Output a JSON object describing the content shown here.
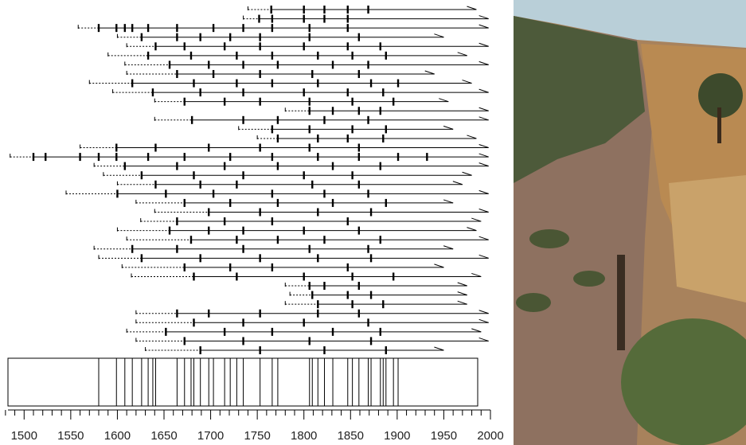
{
  "chart_data": {
    "type": "fire-history",
    "xlim": [
      1475,
      2000
    ],
    "xticks": [
      1500,
      1550,
      1600,
      1650,
      1700,
      1750,
      1800,
      1850,
      1900,
      1950,
      2000
    ],
    "xminorticks": [
      1480,
      1490,
      1510,
      1520,
      1530,
      1540,
      1560,
      1570,
      1580,
      1590,
      1610,
      1620,
      1630,
      1640,
      1660,
      1670,
      1680,
      1690,
      1710,
      1720,
      1730,
      1740,
      1760,
      1770,
      1780,
      1790,
      1810,
      1820,
      1830,
      1840,
      1860,
      1870,
      1880,
      1890,
      1910,
      1920,
      1930,
      1940,
      1960,
      1970,
      1980,
      1990
    ],
    "color": "#000000",
    "records": [
      {
        "start": 1740,
        "end": 1985,
        "scars": [
          1765,
          1800,
          1822,
          1847,
          1869
        ]
      },
      {
        "start": 1735,
        "end": 1998,
        "scars": [
          1752,
          1766,
          1800,
          1822,
          1847
        ]
      },
      {
        "start": 1558,
        "end": 1998,
        "scars": [
          1580,
          1599,
          1608,
          1616,
          1633,
          1664,
          1703,
          1735,
          1766,
          1806,
          1847
        ]
      },
      {
        "start": 1600,
        "end": 1950,
        "scars": [
          1626,
          1664,
          1689,
          1721,
          1753,
          1806,
          1859
        ]
      },
      {
        "start": 1610,
        "end": 1998,
        "scars": [
          1641,
          1672,
          1715,
          1753,
          1800,
          1847,
          1882
        ]
      },
      {
        "start": 1590,
        "end": 1975,
        "scars": [
          1633,
          1679,
          1728,
          1766,
          1815,
          1852,
          1888
        ]
      },
      {
        "start": 1608,
        "end": 1998,
        "scars": [
          1656,
          1698,
          1735,
          1772,
          1831,
          1869
        ]
      },
      {
        "start": 1610,
        "end": 1940,
        "scars": [
          1664,
          1703,
          1753,
          1809,
          1859
        ]
      },
      {
        "start": 1570,
        "end": 1980,
        "scars": [
          1616,
          1682,
          1728,
          1766,
          1815,
          1872,
          1901
        ]
      },
      {
        "start": 1595,
        "end": 1998,
        "scars": [
          1638,
          1689,
          1735,
          1800,
          1847,
          1885
        ]
      },
      {
        "start": 1640,
        "end": 1955,
        "scars": [
          1672,
          1715,
          1753,
          1806,
          1852,
          1896
        ]
      },
      {
        "start": 1780,
        "end": 1998,
        "scars": [
          1806,
          1831,
          1859,
          1882
        ]
      },
      {
        "start": 1640,
        "end": 1998,
        "scars": [
          1680,
          1735,
          1772,
          1822,
          1869
        ]
      },
      {
        "start": 1730,
        "end": 1960,
        "scars": [
          1766,
          1806,
          1852,
          1888
        ]
      },
      {
        "start": 1750,
        "end": 1985,
        "scars": [
          1772,
          1815,
          1847,
          1885
        ]
      },
      {
        "start": 1560,
        "end": 1998,
        "scars": [
          1599,
          1641,
          1698,
          1753,
          1806,
          1859
        ]
      },
      {
        "start": 1485,
        "end": 1998,
        "scars": [
          1510,
          1523,
          1560,
          1580,
          1599,
          1633,
          1672,
          1721,
          1766,
          1815,
          1859,
          1901,
          1932
        ]
      },
      {
        "start": 1575,
        "end": 1998,
        "scars": [
          1608,
          1664,
          1715,
          1772,
          1831,
          1882
        ]
      },
      {
        "start": 1585,
        "end": 1980,
        "scars": [
          1626,
          1682,
          1735,
          1800,
          1852
        ]
      },
      {
        "start": 1600,
        "end": 1970,
        "scars": [
          1641,
          1689,
          1728,
          1809,
          1859
        ]
      },
      {
        "start": 1545,
        "end": 1998,
        "scars": [
          1600,
          1652,
          1703,
          1766,
          1822,
          1869
        ]
      },
      {
        "start": 1620,
        "end": 1960,
        "scars": [
          1672,
          1721,
          1772,
          1831,
          1888
        ]
      },
      {
        "start": 1640,
        "end": 1998,
        "scars": [
          1698,
          1753,
          1815,
          1872
        ]
      },
      {
        "start": 1625,
        "end": 1990,
        "scars": [
          1664,
          1715,
          1766,
          1847
        ]
      },
      {
        "start": 1600,
        "end": 1985,
        "scars": [
          1656,
          1698,
          1735,
          1800,
          1859
        ]
      },
      {
        "start": 1610,
        "end": 1998,
        "scars": [
          1679,
          1728,
          1772,
          1822,
          1882
        ]
      },
      {
        "start": 1575,
        "end": 1960,
        "scars": [
          1616,
          1664,
          1735,
          1806,
          1869
        ]
      },
      {
        "start": 1580,
        "end": 1998,
        "scars": [
          1626,
          1689,
          1753,
          1815,
          1872
        ]
      },
      {
        "start": 1605,
        "end": 1950,
        "scars": [
          1672,
          1721,
          1766,
          1847
        ]
      },
      {
        "start": 1615,
        "end": 1990,
        "scars": [
          1682,
          1728,
          1800,
          1852,
          1896
        ]
      },
      {
        "start": 1780,
        "end": 1975,
        "scars": [
          1806,
          1822,
          1859
        ]
      },
      {
        "start": 1785,
        "end": 1975,
        "scars": [
          1809,
          1847,
          1872
        ]
      },
      {
        "start": 1780,
        "end": 1975,
        "scars": [
          1815,
          1852,
          1885
        ]
      },
      {
        "start": 1620,
        "end": 1998,
        "scars": [
          1664,
          1698,
          1753,
          1815,
          1859
        ]
      },
      {
        "start": 1620,
        "end": 1998,
        "scars": [
          1682,
          1735,
          1800,
          1869
        ]
      },
      {
        "start": 1610,
        "end": 1990,
        "scars": [
          1652,
          1715,
          1766,
          1831,
          1882
        ]
      },
      {
        "start": 1620,
        "end": 1998,
        "scars": [
          1672,
          1735,
          1806,
          1872
        ]
      },
      {
        "start": 1630,
        "end": 1950,
        "scars": [
          1689,
          1753,
          1822,
          1888
        ]
      }
    ],
    "composite": [
      1580,
      1599,
      1608,
      1616,
      1626,
      1633,
      1638,
      1641,
      1664,
      1672,
      1679,
      1682,
      1689,
      1698,
      1703,
      1715,
      1721,
      1728,
      1735,
      1753,
      1766,
      1772,
      1806,
      1809,
      1815,
      1822,
      1831,
      1847,
      1852,
      1859,
      1869,
      1872,
      1882,
      1885,
      1888,
      1896,
      1901
    ]
  }
}
